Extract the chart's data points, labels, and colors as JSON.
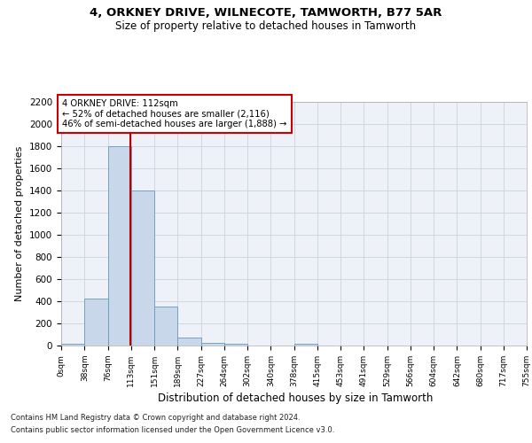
{
  "title1": "4, ORKNEY DRIVE, WILNECOTE, TAMWORTH, B77 5AR",
  "title2": "Size of property relative to detached houses in Tamworth",
  "xlabel": "Distribution of detached houses by size in Tamworth",
  "ylabel": "Number of detached properties",
  "bin_edges": [
    0,
    38,
    76,
    113,
    151,
    189,
    227,
    264,
    302,
    340,
    378,
    415,
    453,
    491,
    529,
    566,
    604,
    642,
    680,
    717,
    755
  ],
  "bar_heights": [
    15,
    425,
    1800,
    1400,
    350,
    75,
    25,
    15,
    0,
    0,
    15,
    0,
    0,
    0,
    0,
    0,
    0,
    0,
    0,
    0
  ],
  "bar_color": "#c8d8ea",
  "bar_edge_color": "#6699bb",
  "grid_color": "#c8d4e0",
  "bg_color": "#eef2f8",
  "property_line_x": 112,
  "property_line_color": "#bb0000",
  "annotation_text": "4 ORKNEY DRIVE: 112sqm\n← 52% of detached houses are smaller (2,116)\n46% of semi-detached houses are larger (1,888) →",
  "annotation_box_color": "#ffffff",
  "annotation_box_edge": "#cc0000",
  "ylim": [
    0,
    2200
  ],
  "yticks": [
    0,
    200,
    400,
    600,
    800,
    1000,
    1200,
    1400,
    1600,
    1800,
    2000,
    2200
  ],
  "footnote1": "Contains HM Land Registry data © Crown copyright and database right 2024.",
  "footnote2": "Contains public sector information licensed under the Open Government Licence v3.0."
}
